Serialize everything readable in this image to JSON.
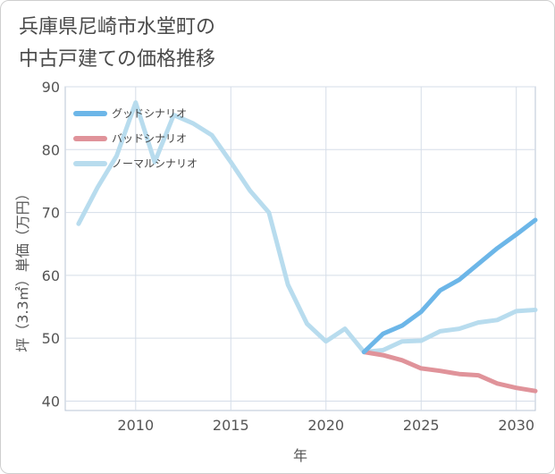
{
  "chart_data": {
    "type": "line",
    "title_lines": [
      "兵庫県尼崎市水堂町の",
      "中古戸建ての価格推移"
    ],
    "xlabel": "年",
    "ylabel": "坪（3.3㎡）単価（万円）",
    "xlim": [
      2006.3,
      2031
    ],
    "ylim": [
      38.5,
      90
    ],
    "x_ticks": [
      2010,
      2015,
      2020,
      2025,
      2030
    ],
    "y_ticks": [
      40,
      50,
      60,
      70,
      80,
      90
    ],
    "grid": true,
    "legend_position": "top-left",
    "series": [
      {
        "name": "グッドシナリオ",
        "color": "#6cb6e8",
        "x": [
          2022,
          2023,
          2024,
          2025,
          2026,
          2027,
          2028,
          2029,
          2030,
          2031
        ],
        "y": [
          47.8,
          50.7,
          52.0,
          54.2,
          57.6,
          59.3,
          61.8,
          64.3,
          66.5,
          68.8
        ]
      },
      {
        "name": "バッドシナリオ",
        "color": "#e0939a",
        "x": [
          2022,
          2023,
          2024,
          2025,
          2026,
          2027,
          2028,
          2029,
          2030,
          2031
        ],
        "y": [
          47.8,
          47.3,
          46.5,
          45.2,
          44.8,
          44.3,
          44.1,
          42.8,
          42.1,
          41.6
        ]
      },
      {
        "name": "ノーマルシナリオ",
        "color": "#b8dcee",
        "x": [
          2007,
          2008,
          2009,
          2010,
          2011,
          2012,
          2013,
          2014,
          2015,
          2016,
          2017,
          2018,
          2019,
          2020,
          2021,
          2022,
          2023,
          2024,
          2025,
          2026,
          2027,
          2028,
          2029,
          2030,
          2031
        ],
        "y": [
          68.2,
          74.0,
          79.0,
          87.5,
          78.0,
          85.5,
          84.2,
          82.3,
          78.0,
          73.5,
          70.0,
          58.5,
          52.3,
          49.5,
          51.5,
          47.8,
          48.1,
          49.5,
          49.6,
          51.1,
          51.5,
          52.5,
          52.9,
          54.3,
          54.5
        ]
      }
    ]
  }
}
